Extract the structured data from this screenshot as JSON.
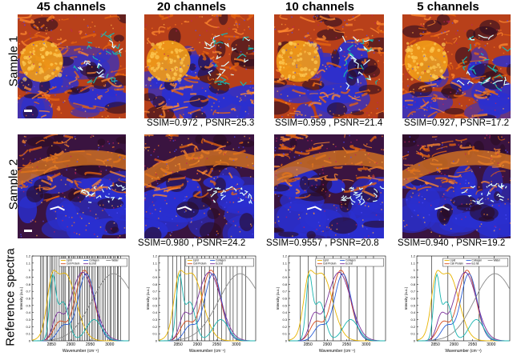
{
  "columns": [
    "45 channels",
    "20 channels",
    "10 channels",
    "5 channels"
  ],
  "rows": {
    "sample1": "Sample 1",
    "sample2": "Sample 2",
    "reference": "Reference spectra"
  },
  "metrics": {
    "sample1": [
      "",
      "SSIM=0.972 , PSNR=25.3",
      "SSIM=0.959 , PSNR=21.4",
      "SSIM=0.927, PSNR=17.2"
    ],
    "sample2": [
      "",
      "SSIM=0.980 , PSNR=24.2",
      "SSIM=0.9557 , PSNR=20.8",
      "SSIM=0.940 , PSNR=19.2"
    ]
  },
  "colors": {
    "lipid": "#e8b400",
    "cell_protein": "#d44a1c",
    "collagen": "#2a5fd8",
    "ecl_fat": "#7a2f9a",
    "water": "#8a8a8a",
    "extra": "#19b5b0",
    "background_blue": "#2a2fd0",
    "tissue_orange": "#e8650f",
    "tissue_dark": "#2a0c22",
    "collagen_white": "#ddffff"
  },
  "chart_data": [
    {
      "type": "line",
      "panel": "45 channels",
      "ylabel": "Intensity (a.u.)",
      "xlabel": "Wavenumber (cm⁻¹)",
      "xlim": [
        2800,
        3050
      ],
      "ylim": [
        0,
        1.2
      ],
      "yticks": [
        "0",
        "0.1",
        "0.2",
        "0.3",
        "0.4",
        "0.5",
        "0.6",
        "0.7",
        "0.8",
        "0.9",
        "1",
        "1.1",
        "1.2"
      ],
      "xticks": [
        "2850",
        "2900",
        "2950",
        "3000"
      ],
      "legend": [
        "Lipid",
        "Cell Protein",
        "Collagen",
        "Ecl.fat",
        "Water"
      ],
      "channel_count": 45
    },
    {
      "type": "line",
      "panel": "20 channels",
      "ylabel": "Intensity (a.u.)",
      "xlabel": "Wavenumber (cm⁻¹)",
      "xlim": [
        2800,
        3050
      ],
      "ylim": [
        0,
        1.2
      ],
      "yticks": [
        "0",
        "0.1",
        "0.2",
        "0.3",
        "0.4",
        "0.5",
        "0.6",
        "0.7",
        "0.8",
        "0.9",
        "1",
        "1.1",
        "1.2"
      ],
      "xticks": [
        "2850",
        "2900",
        "2950",
        "3000"
      ],
      "legend": [
        "Lipid",
        "Cell Protein",
        "Collagen",
        "Ecl.fat"
      ],
      "channel_count": 20
    },
    {
      "type": "line",
      "panel": "10 channels",
      "ylabel": "Intensity (a.u.)",
      "xlabel": "Wavenumber (cm⁻¹)",
      "xlim": [
        2800,
        3050
      ],
      "ylim": [
        0,
        1.2
      ],
      "yticks": [
        "0",
        "0.1",
        "0.2",
        "0.3",
        "0.4",
        "0.5",
        "0.6",
        "0.7",
        "0.8",
        "0.9",
        "1",
        "1.1",
        "1.2"
      ],
      "xticks": [
        "2850",
        "2900",
        "2950",
        "3000"
      ],
      "legend": [
        "Lipid",
        "Cell Protein",
        "Collagen",
        "Ecl.fat"
      ],
      "channel_count": 10
    },
    {
      "type": "line",
      "panel": "5 channels",
      "ylabel": "Intensity (a.u.)",
      "xlabel": "Wavenumber (cm⁻¹)",
      "xlim": [
        2800,
        3050
      ],
      "ylim": [
        0,
        1.2
      ],
      "yticks": [
        "0",
        "0.1",
        "0.2",
        "0.3",
        "0.4",
        "0.5",
        "0.6",
        "0.7",
        "0.8",
        "0.9",
        "1",
        "1.1",
        "1.2"
      ],
      "xticks": [
        "2850",
        "2900",
        "2950",
        "3000"
      ],
      "legend": [
        "Lipid",
        "Cell Protein",
        "Collagen",
        "Ecl.fat",
        "Water"
      ],
      "channel_count": 5
    }
  ]
}
